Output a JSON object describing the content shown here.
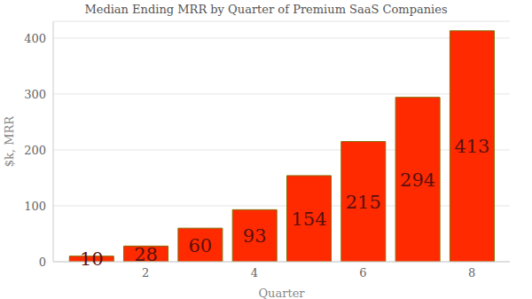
{
  "chart_data": {
    "type": "bar",
    "title": "Median Ending MRR by Quarter of Premium SaaS Companies",
    "x_label": "Quarter",
    "y_label": "$k, MRR",
    "x": [
      1,
      2,
      3,
      4,
      5,
      6,
      7,
      8
    ],
    "values": [
      10,
      28,
      60,
      93,
      154,
      215,
      294,
      413
    ],
    "color": "#ff2a00",
    "xlim": [
      0.3,
      8.7
    ],
    "xticks": [
      2,
      4,
      6,
      8
    ],
    "ylim": [
      0,
      430
    ],
    "yticks": [
      0,
      100,
      200,
      300,
      400
    ],
    "grid": true,
    "data_labels": true
  }
}
